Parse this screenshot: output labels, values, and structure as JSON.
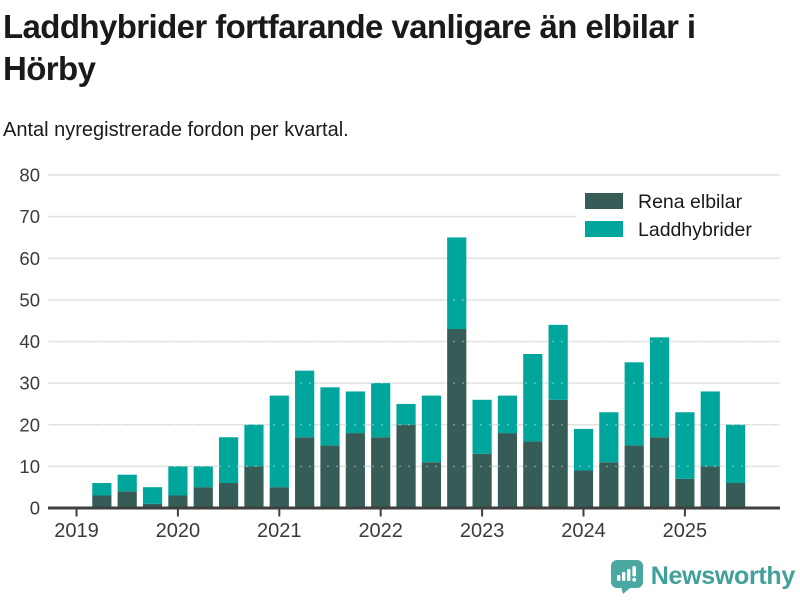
{
  "header": {
    "title_lines": [
      "Laddhybrider fortfarande vanligare än elbilar i",
      "Hörby"
    ],
    "subtitle": "Antal nyregistrerade fordon per kvartal."
  },
  "chart_data": {
    "type": "bar",
    "stacked": true,
    "title": "Laddhybrider fortfarande vanligare än elbilar i Hörby",
    "subtitle": "Antal nyregistrerade fordon per kvartal.",
    "categories": [
      "2019 Q1",
      "2019 Q2",
      "2019 Q3",
      "2019 Q4",
      "2020 Q1",
      "2020 Q2",
      "2020 Q3",
      "2020 Q4",
      "2021 Q1",
      "2021 Q2",
      "2021 Q3",
      "2021 Q4",
      "2022 Q1",
      "2022 Q2",
      "2022 Q3",
      "2022 Q4",
      "2023 Q1",
      "2023 Q2",
      "2023 Q3",
      "2023 Q4",
      "2024 Q1",
      "2024 Q2",
      "2024 Q3",
      "2024 Q4",
      "2025 Q1",
      "2025 Q2",
      "2025 Q3"
    ],
    "year_tick_labels": [
      "2019",
      "2020",
      "2021",
      "2022",
      "2023",
      "2024",
      "2025"
    ],
    "series": [
      {
        "name": "Rena elbilar",
        "color": "#355c56",
        "values": [
          0,
          3,
          4,
          1,
          3,
          5,
          6,
          10,
          5,
          17,
          15,
          18,
          17,
          20,
          11,
          43,
          13,
          18,
          16,
          26,
          9,
          11,
          15,
          17,
          7,
          10,
          6
        ]
      },
      {
        "name": "Laddhybrider",
        "color": "#00a69c",
        "values": [
          0,
          3,
          4,
          4,
          7,
          5,
          11,
          10,
          22,
          16,
          14,
          10,
          13,
          5,
          16,
          22,
          13,
          9,
          21,
          18,
          10,
          12,
          20,
          24,
          16,
          18,
          14
        ]
      }
    ],
    "ylim": [
      0,
      80
    ],
    "yticks": [
      0,
      10,
      20,
      30,
      40,
      50,
      60,
      70,
      80
    ],
    "grid": true,
    "legend_position": "top-right",
    "xlabel": "",
    "ylabel": ""
  },
  "legend": {
    "items": [
      {
        "label": "Rena elbilar",
        "color": "#355c56"
      },
      {
        "label": "Laddhybrider",
        "color": "#00a69c"
      }
    ]
  },
  "footer": {
    "brand": "Newsworthy",
    "brand_color": "#40a09a",
    "logo_icon": "bar-chart-pin-icon",
    "logo_color": "#4aa7a1"
  },
  "colors": {
    "background": "#ffffff",
    "grid": "#e0e0e0",
    "axis": "#3f3f3f",
    "tick_label": "#3a3a3a"
  }
}
